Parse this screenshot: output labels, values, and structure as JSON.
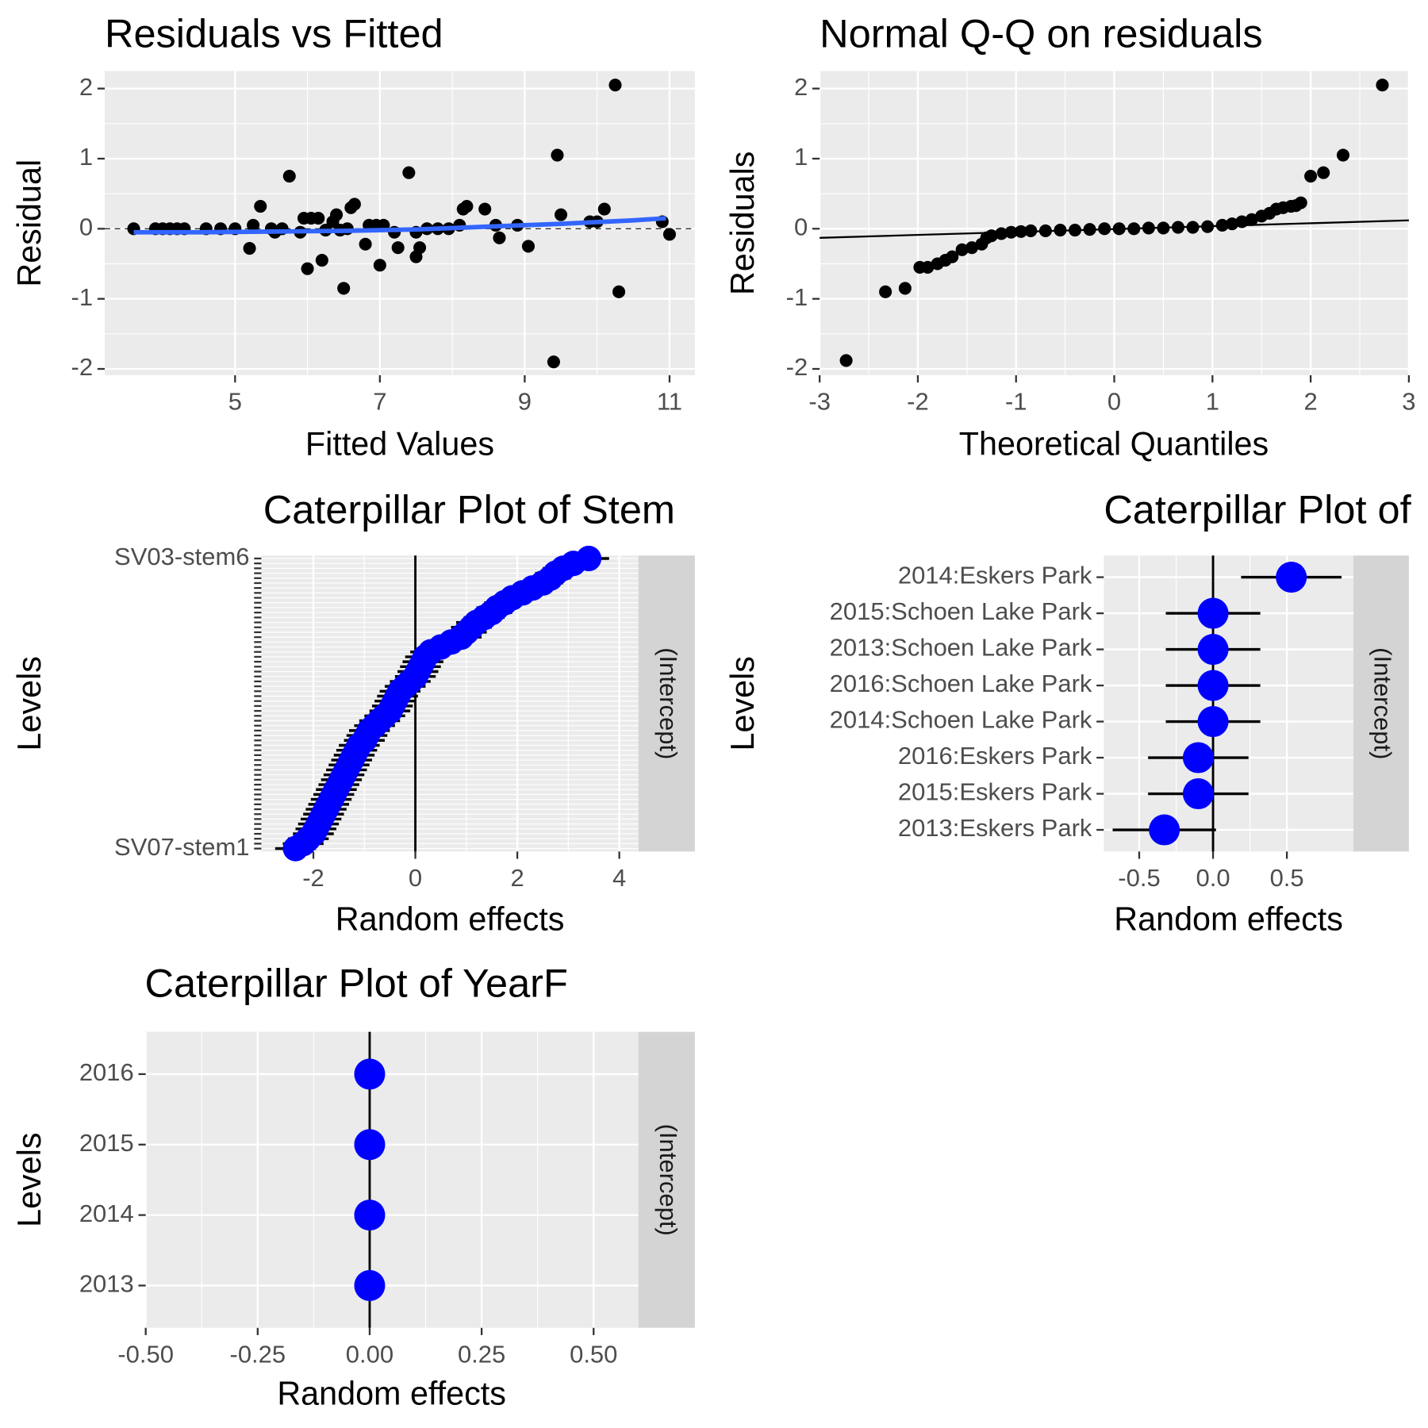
{
  "chart_data": [
    {
      "type": "scatter",
      "title": "Residuals vs Fitted",
      "x_label": "Fitted Values",
      "y_label": "Residual",
      "x": [
        3.6,
        3.9,
        4.0,
        4.1,
        4.2,
        4.3,
        4.6,
        4.8,
        5.0,
        5.2,
        5.25,
        5.35,
        5.5,
        5.55,
        5.65,
        5.75,
        5.9,
        5.95,
        6.0,
        6.05,
        6.15,
        6.2,
        6.25,
        6.35,
        6.4,
        6.45,
        6.5,
        6.55,
        6.6,
        6.65,
        6.8,
        6.85,
        6.95,
        7.0,
        7.05,
        7.2,
        7.25,
        7.4,
        7.5,
        7.5,
        7.55,
        7.65,
        7.8,
        7.95,
        8.1,
        8.15,
        8.2,
        8.45,
        8.6,
        8.65,
        8.9,
        9.05,
        9.4,
        9.45,
        9.5,
        9.9,
        10.0,
        10.1,
        10.25,
        10.3,
        10.9,
        11.0
      ],
      "values": [
        0,
        0,
        0,
        0,
        0,
        0,
        0,
        0,
        0,
        -0.28,
        0.05,
        0.32,
        0,
        -0.05,
        0,
        0.75,
        -0.05,
        0.15,
        -0.57,
        0.15,
        0.15,
        -0.45,
        -0.02,
        0.1,
        0.2,
        -0.02,
        -0.85,
        0,
        0.3,
        0.35,
        -0.22,
        0.05,
        0.05,
        -0.52,
        0.05,
        -0.05,
        -0.27,
        0.8,
        -0.05,
        -0.4,
        -0.27,
        0,
        0,
        0,
        0.05,
        0.28,
        0.32,
        0.28,
        0.05,
        -0.13,
        0.05,
        -0.25,
        -1.9,
        1.05,
        0.2,
        0.1,
        0.1,
        0.28,
        2.05,
        -0.9,
        0.1,
        -0.08
      ],
      "color": "#000000",
      "lines": [
        {
          "x": [
            3.6,
            4.5,
            5.5,
            6.5,
            7.5,
            8.5,
            9.5,
            10.5,
            10.95
          ],
          "values": [
            -0.05,
            -0.05,
            -0.04,
            -0.03,
            -0.01,
            0.03,
            0.07,
            0.12,
            0.15
          ],
          "color": "#3366ff"
        }
      ],
      "hline": 0,
      "xlim": [
        3.2,
        11.35
      ],
      "ylim": [
        -2.09,
        2.25
      ],
      "xticks": [
        5,
        7,
        9,
        11
      ],
      "yticks": [
        -2,
        -1,
        0,
        1,
        2
      ],
      "grid": true
    },
    {
      "type": "scatter",
      "title": "Normal Q-Q on residuals",
      "x_label": "Theoretical Quantiles",
      "y_label": "Residuals",
      "x": [
        -2.73,
        -2.33,
        -2.13,
        -1.98,
        -1.9,
        -1.8,
        -1.72,
        -1.65,
        -1.55,
        -1.45,
        -1.35,
        -1.3,
        -1.25,
        -1.15,
        -1.05,
        -0.95,
        -0.85,
        -0.7,
        -0.55,
        -0.4,
        -0.25,
        -0.1,
        0.05,
        0.2,
        0.35,
        0.5,
        0.65,
        0.8,
        0.95,
        1.1,
        1.2,
        1.3,
        1.4,
        1.5,
        1.58,
        1.65,
        1.72,
        1.8,
        1.85,
        1.9,
        2.0,
        2.13,
        2.33,
        2.73
      ],
      "values": [
        -1.88,
        -0.9,
        -0.85,
        -0.55,
        -0.55,
        -0.5,
        -0.45,
        -0.4,
        -0.3,
        -0.27,
        -0.22,
        -0.13,
        -0.1,
        -0.07,
        -0.05,
        -0.04,
        -0.03,
        -0.03,
        -0.02,
        -0.02,
        -0.01,
        0,
        0,
        0,
        0.01,
        0.01,
        0.02,
        0.02,
        0.03,
        0.05,
        0.07,
        0.1,
        0.13,
        0.18,
        0.22,
        0.28,
        0.3,
        0.32,
        0.33,
        0.37,
        0.75,
        0.8,
        1.05,
        2.05
      ],
      "color": "#000000",
      "lines": [
        {
          "x": [
            -3,
            3
          ],
          "values": [
            -0.13,
            0.12
          ],
          "color": "#000000"
        }
      ],
      "xlim": [
        -3,
        3
      ],
      "ylim": [
        -2.09,
        2.25
      ],
      "xticks": [
        -3,
        -2,
        -1,
        0,
        1,
        2,
        3
      ],
      "yticks": [
        -2,
        -1,
        0,
        1,
        2
      ],
      "grid": true
    },
    {
      "type": "caterpillar",
      "title": "Caterpillar Plot of  Stem",
      "x_label": "Random effects",
      "y_label": "Levels",
      "strip": "(Intercept)",
      "categories": [
        "SV07-stem1",
        null,
        null,
        null,
        null,
        null,
        null,
        null,
        null,
        null,
        null,
        null,
        null,
        null,
        null,
        null,
        null,
        null,
        null,
        null,
        null,
        null,
        null,
        null,
        null,
        null,
        null,
        null,
        null,
        null,
        null,
        null,
        null,
        null,
        null,
        null,
        null,
        null,
        null,
        null,
        null,
        null,
        null,
        null,
        null,
        null,
        null,
        null,
        null,
        null,
        null,
        null,
        null,
        null,
        null,
        null,
        null,
        null,
        null,
        "SV03-stem6"
      ],
      "values": [
        -2.35,
        -2.2,
        -2.1,
        -2.0,
        -1.95,
        -1.9,
        -1.85,
        -1.8,
        -1.75,
        -1.7,
        -1.65,
        -1.6,
        -1.55,
        -1.5,
        -1.45,
        -1.4,
        -1.35,
        -1.3,
        -1.25,
        -1.2,
        -1.15,
        -1.1,
        -1.0,
        -0.95,
        -0.9,
        -0.8,
        -0.7,
        -0.6,
        -0.5,
        -0.45,
        -0.4,
        -0.35,
        -0.3,
        -0.2,
        -0.1,
        0.0,
        0.05,
        0.1,
        0.15,
        0.2,
        0.3,
        0.5,
        0.7,
        0.9,
        1.0,
        1.1,
        1.2,
        1.35,
        1.5,
        1.6,
        1.75,
        1.9,
        2.1,
        2.3,
        2.5,
        2.65,
        2.75,
        2.9,
        3.1,
        3.4
      ],
      "errors": [
        0.4,
        0.4,
        0.4,
        0.4,
        0.4,
        0.4,
        0.4,
        0.4,
        0.4,
        0.4,
        0.4,
        0.4,
        0.4,
        0.4,
        0.4,
        0.4,
        0.4,
        0.4,
        0.4,
        0.4,
        0.4,
        0.4,
        0.4,
        0.4,
        0.4,
        0.4,
        0.4,
        0.4,
        0.4,
        0.4,
        0.4,
        0.4,
        0.4,
        0.4,
        0.4,
        0.4,
        0.4,
        0.4,
        0.4,
        0.4,
        0.4,
        0.4,
        0.4,
        0.4,
        0.4,
        0.4,
        0.4,
        0.4,
        0.4,
        0.4,
        0.4,
        0.4,
        0.4,
        0.4,
        0.4,
        0.4,
        0.4,
        0.4,
        0.4,
        0.4
      ],
      "color": "#0000ff",
      "xlim": [
        -3.02,
        4.375
      ],
      "xticks": [
        -2,
        0,
        2,
        4
      ],
      "grid": true
    },
    {
      "type": "caterpillar",
      "title": "Caterpillar Plot of",
      "x_label": "Random effects",
      "y_label": "Levels",
      "strip": "(Intercept)",
      "categories": [
        "2013:Eskers Park",
        "2015:Eskers Park",
        "2016:Eskers Park",
        "2014:Schoen Lake Park",
        "2016:Schoen Lake Park",
        "2013:Schoen Lake Park",
        "2015:Schoen Lake Park",
        "2014:Eskers Park"
      ],
      "values": [
        -0.33,
        -0.1,
        -0.1,
        0,
        0,
        0,
        0,
        0.53
      ],
      "errors": [
        0.35,
        0.34,
        0.34,
        0.32,
        0.32,
        0.32,
        0.32,
        0.34
      ],
      "color": "#0000ff",
      "xlim": [
        -0.74,
        0.95
      ],
      "xticks": [
        -0.5,
        {
          "value": 0,
          "label": "0.0"
        },
        0.5
      ],
      "grid": true
    },
    {
      "type": "caterpillar",
      "title": "Caterpillar Plot of  YearF",
      "x_label": "Random effects",
      "y_label": "Levels",
      "strip": "(Intercept)",
      "categories": [
        "2013",
        "2014",
        "2015",
        "2016"
      ],
      "values": [
        0,
        0,
        0,
        0
      ],
      "errors": [
        0,
        0,
        0,
        0
      ],
      "color": "#0000ff",
      "xlim": [
        -0.5,
        0.6
      ],
      "xticks": [
        {
          "value": -0.5,
          "label": "-0.50"
        },
        {
          "value": -0.25,
          "label": "-0.25"
        },
        {
          "value": 0,
          "label": "0.00"
        },
        {
          "value": 0.25,
          "label": "0.25"
        },
        {
          "value": 0.5,
          "label": "0.50"
        }
      ],
      "grid": true
    }
  ]
}
